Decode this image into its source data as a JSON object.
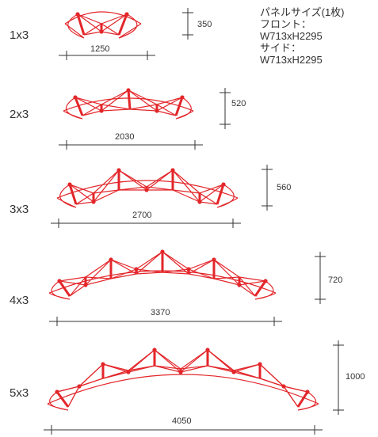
{
  "panel_info": {
    "title": "パネルサイズ(1枚)",
    "front_label": "フロント：",
    "front_size": "W713xH2295",
    "side_label": "サイド：",
    "side_size": "W713xH2295"
  },
  "configs": [
    {
      "label": "1x3",
      "width": "1250",
      "depth": "350"
    },
    {
      "label": "2x3",
      "width": "2030",
      "depth": "520"
    },
    {
      "label": "3x3",
      "width": "2700",
      "depth": "560"
    },
    {
      "label": "4x3",
      "width": "3370",
      "depth": "720"
    },
    {
      "label": "5x3",
      "width": "4050",
      "depth": "1000"
    }
  ],
  "colors": {
    "frame": "#e3262a",
    "dimension": "#333333"
  }
}
